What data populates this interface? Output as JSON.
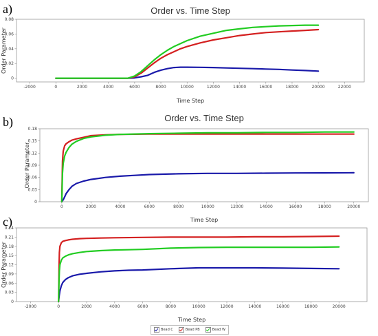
{
  "panel_labels": [
    "a)",
    "b)",
    "c)"
  ],
  "legend": [
    {
      "label": "Bead C",
      "color": "#1a1aaa"
    },
    {
      "label": "Bead PB",
      "color": "#d42020"
    },
    {
      "label": "Bead W",
      "color": "#22cc22"
    }
  ],
  "chart_data": [
    {
      "type": "line",
      "title": "Order vs. Time Step",
      "xlabel": "Time Step",
      "ylabel": "Order Parameter",
      "xlim": [
        -3000,
        23500
      ],
      "ylim": [
        -0.005,
        0.08
      ],
      "xticks": [
        -2000,
        0,
        2000,
        4000,
        6000,
        8000,
        10000,
        12000,
        14000,
        16000,
        18000,
        20000,
        22000
      ],
      "yticks": [
        0,
        0.02,
        0.04,
        0.06,
        0.08
      ],
      "ytick_decimals": 2,
      "series": [
        {
          "name": "Bead C",
          "color": "#1a1aaa",
          "x": [
            0,
            5500,
            6000,
            6500,
            7000,
            7500,
            8000,
            8500,
            9000,
            9500,
            10000,
            11000,
            12000,
            13000,
            14000,
            15000,
            16000,
            17000,
            18000,
            19000,
            20000
          ],
          "y": [
            0,
            0,
            0.0005,
            0.002,
            0.004,
            0.008,
            0.011,
            0.013,
            0.0145,
            0.015,
            0.015,
            0.0148,
            0.0145,
            0.014,
            0.0135,
            0.013,
            0.0125,
            0.012,
            0.0112,
            0.0105,
            0.0097
          ]
        },
        {
          "name": "Bead PB",
          "color": "#d42020",
          "x": [
            0,
            5500,
            6000,
            6500,
            7000,
            7500,
            8000,
            8500,
            9000,
            9500,
            10000,
            11000,
            12000,
            13000,
            14000,
            15000,
            16000,
            17000,
            18000,
            19000,
            20000
          ],
          "y": [
            0,
            0,
            0.002,
            0.007,
            0.014,
            0.021,
            0.027,
            0.032,
            0.036,
            0.04,
            0.043,
            0.048,
            0.052,
            0.055,
            0.058,
            0.06,
            0.062,
            0.063,
            0.064,
            0.065,
            0.066
          ]
        },
        {
          "name": "Bead W",
          "color": "#22cc22",
          "x": [
            0,
            5500,
            6000,
            6500,
            7000,
            7500,
            8000,
            8500,
            9000,
            9500,
            10000,
            11000,
            12000,
            13000,
            14000,
            15000,
            16000,
            17000,
            18000,
            19000,
            20000
          ],
          "y": [
            0,
            0,
            0.003,
            0.009,
            0.017,
            0.025,
            0.032,
            0.038,
            0.043,
            0.047,
            0.051,
            0.057,
            0.061,
            0.065,
            0.067,
            0.069,
            0.07,
            0.071,
            0.0715,
            0.072,
            0.072
          ]
        }
      ]
    },
    {
      "type": "line",
      "title": "Order vs. Time Step",
      "xlabel": "Time Step",
      "ylabel": "Order Parameter",
      "xlim": [
        -1500,
        21000
      ],
      "ylim": [
        0,
        0.18
      ],
      "xticks": [
        0,
        2000,
        4000,
        6000,
        8000,
        10000,
        12000,
        14000,
        16000,
        18000,
        20000
      ],
      "yticks": [
        0,
        0.03,
        0.06,
        0.09,
        0.12,
        0.15,
        0.18
      ],
      "ytick_decimals": 2,
      "series": [
        {
          "name": "Bead C",
          "color": "#1a1aaa",
          "x": [
            0,
            100,
            200,
            300,
            500,
            700,
            1000,
            1500,
            2000,
            3000,
            4000,
            5000,
            6000,
            8000,
            10000,
            12000,
            14000,
            16000,
            18000,
            20000
          ],
          "y": [
            0,
            0.005,
            0.012,
            0.02,
            0.03,
            0.038,
            0.045,
            0.051,
            0.055,
            0.06,
            0.063,
            0.065,
            0.067,
            0.069,
            0.07,
            0.07,
            0.0705,
            0.071,
            0.0712,
            0.0715
          ]
        },
        {
          "name": "Bead PB",
          "color": "#d42020",
          "x": [
            0,
            50,
            100,
            200,
            300,
            500,
            700,
            1000,
            1500,
            2000,
            3000,
            4000,
            6000,
            8000,
            10000,
            12000,
            14000,
            16000,
            18000,
            20000
          ],
          "y": [
            0,
            0.1,
            0.125,
            0.138,
            0.143,
            0.148,
            0.152,
            0.155,
            0.159,
            0.163,
            0.165,
            0.166,
            0.167,
            0.167,
            0.167,
            0.167,
            0.167,
            0.167,
            0.167,
            0.167
          ]
        },
        {
          "name": "Bead W",
          "color": "#22cc22",
          "x": [
            0,
            50,
            100,
            200,
            300,
            500,
            700,
            1000,
            1500,
            2000,
            3000,
            4000,
            6000,
            8000,
            10000,
            12000,
            14000,
            16000,
            18000,
            20000
          ],
          "y": [
            0,
            0.07,
            0.095,
            0.113,
            0.122,
            0.134,
            0.142,
            0.149,
            0.156,
            0.16,
            0.164,
            0.166,
            0.168,
            0.169,
            0.17,
            0.17,
            0.171,
            0.171,
            0.172,
            0.172
          ]
        }
      ]
    },
    {
      "type": "line",
      "title": "",
      "xlabel": "Time Step",
      "ylabel": "Order Parameter",
      "xlim": [
        -3000,
        22000
      ],
      "ylim": [
        0,
        0.24
      ],
      "xticks": [
        -2000,
        0,
        2000,
        4000,
        6000,
        8000,
        10000,
        12000,
        14000,
        16000,
        18000,
        20000
      ],
      "yticks": [
        0,
        0.03,
        0.06,
        0.09,
        0.12,
        0.15,
        0.18,
        0.21,
        0.24
      ],
      "ytick_decimals": 2,
      "series": [
        {
          "name": "Bead C",
          "color": "#1a1aaa",
          "x": [
            0,
            50,
            100,
            200,
            300,
            500,
            700,
            1000,
            1500,
            2000,
            3000,
            4000,
            5000,
            6000,
            8000,
            10000,
            12000,
            14000,
            16000,
            18000,
            20000
          ],
          "y": [
            0,
            0.02,
            0.035,
            0.052,
            0.062,
            0.072,
            0.078,
            0.084,
            0.089,
            0.092,
            0.097,
            0.1,
            0.102,
            0.103,
            0.107,
            0.11,
            0.11,
            0.11,
            0.109,
            0.108,
            0.107
          ]
        },
        {
          "name": "Bead PB",
          "color": "#d42020",
          "x": [
            0,
            30,
            60,
            100,
            200,
            300,
            500,
            700,
            1000,
            1500,
            2000,
            3000,
            4000,
            6000,
            8000,
            10000,
            12000,
            14000,
            16000,
            18000,
            20000
          ],
          "y": [
            0,
            0.1,
            0.16,
            0.18,
            0.192,
            0.196,
            0.199,
            0.201,
            0.203,
            0.205,
            0.206,
            0.207,
            0.208,
            0.209,
            0.21,
            0.21,
            0.21,
            0.211,
            0.211,
            0.212,
            0.213
          ]
        },
        {
          "name": "Bead W",
          "color": "#22cc22",
          "x": [
            0,
            30,
            60,
            100,
            200,
            300,
            500,
            700,
            1000,
            1500,
            2000,
            3000,
            4000,
            5000,
            6000,
            8000,
            10000,
            12000,
            14000,
            16000,
            18000,
            20000
          ],
          "y": [
            0,
            0.06,
            0.1,
            0.12,
            0.135,
            0.142,
            0.148,
            0.152,
            0.156,
            0.16,
            0.163,
            0.166,
            0.168,
            0.169,
            0.17,
            0.174,
            0.176,
            0.177,
            0.177,
            0.177,
            0.177,
            0.178
          ]
        }
      ]
    }
  ]
}
